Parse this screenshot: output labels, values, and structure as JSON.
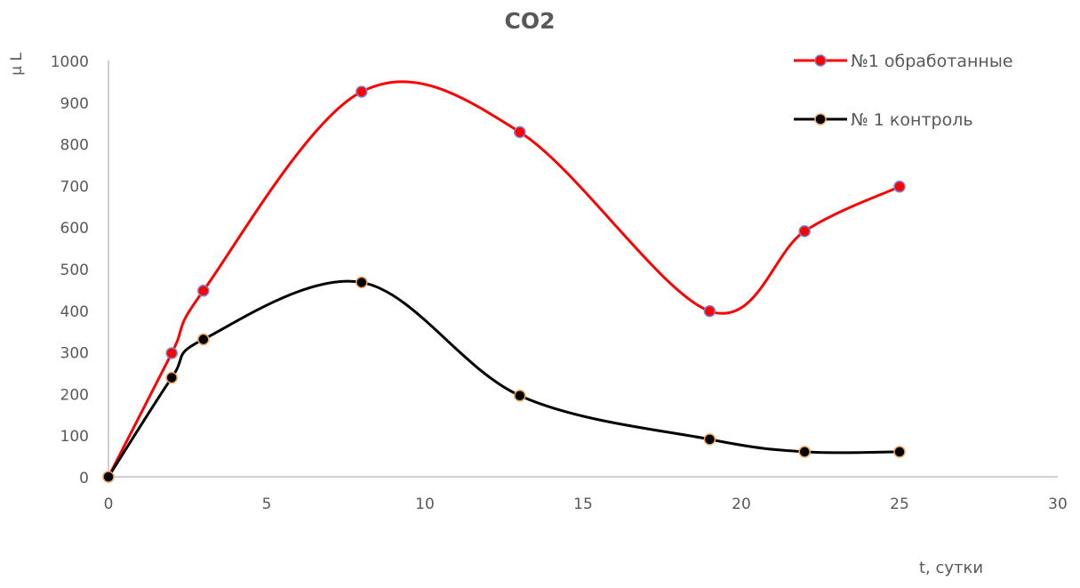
{
  "chart_data": {
    "type": "line",
    "smooth": true,
    "title": "CO2",
    "xlabel": "t, сутки",
    "ylabel": "μ L",
    "xlim": [
      0,
      30
    ],
    "ylim": [
      0,
      1000
    ],
    "xticks": [
      0,
      5,
      10,
      15,
      20,
      25,
      30
    ],
    "yticks": [
      0,
      100,
      200,
      300,
      400,
      500,
      600,
      700,
      800,
      900,
      1000
    ],
    "grid": false,
    "legend_position": "top-right",
    "series": [
      {
        "name": "№1 обработанные",
        "color": "#ff0000",
        "marker_fill": "#ff0000",
        "marker_edge": "#7f7fd0",
        "x": [
          0,
          2,
          3,
          8,
          13,
          19,
          22,
          25
        ],
        "y": [
          0,
          297,
          447,
          925,
          828,
          398,
          590,
          697
        ]
      },
      {
        "name": "№ 1 контроль",
        "color": "#000000",
        "marker_fill": "#000000",
        "marker_edge": "#f4a460",
        "x": [
          0,
          2,
          3,
          8,
          13,
          19,
          22,
          25
        ],
        "y": [
          0,
          238,
          330,
          467,
          195,
          90,
          60,
          60
        ]
      }
    ]
  }
}
